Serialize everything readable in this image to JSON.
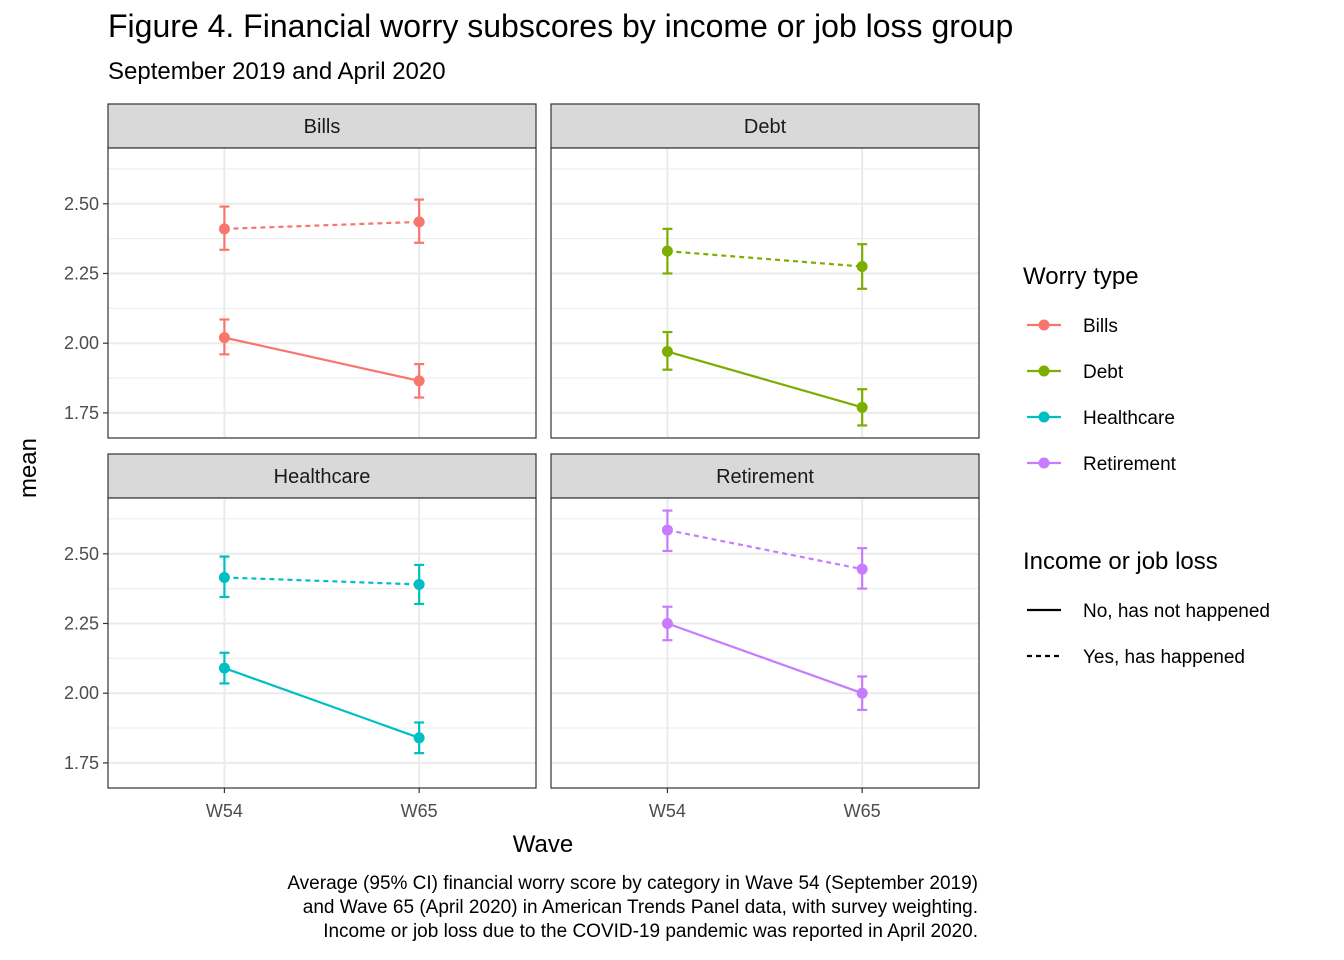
{
  "title": "Figure 4. Financial worry subscores by income or job loss group",
  "subtitle": "September 2019 and April 2020",
  "caption": [
    "Average (95% CI) financial worry score by category in Wave 54 (September 2019)",
    "and Wave 65 (April 2020) in American Trends Panel data, with survey weighting.",
    "Income or job loss due to the COVID-19 pandemic was reported in April 2020."
  ],
  "chart_data": {
    "type": "line",
    "facets": [
      "Bills",
      "Debt",
      "Healthcare",
      "Retirement"
    ],
    "x": [
      "W54",
      "W65"
    ],
    "xlabel": "Wave",
    "ylabel": "mean",
    "ylim": [
      1.66,
      2.7
    ],
    "yticks": [
      "1.75",
      "2.00",
      "2.25",
      "2.50"
    ],
    "grid": true,
    "legend_position": "right",
    "colors": {
      "Bills": "#F8766D",
      "Debt": "#7CAE00",
      "Healthcare": "#00BFC4",
      "Retirement": "#C77CFF"
    },
    "linetypes": {
      "No, has not happened": "solid",
      "Yes, has happened": "dashed"
    },
    "series": [
      {
        "facet": "Bills",
        "worry": "Bills",
        "loss": "No, has not happened",
        "values": [
          2.02,
          1.865
        ],
        "ci_low": [
          1.96,
          1.805
        ],
        "ci_high": [
          2.085,
          1.925
        ]
      },
      {
        "facet": "Bills",
        "worry": "Bills",
        "loss": "Yes, has happened",
        "values": [
          2.41,
          2.435
        ],
        "ci_low": [
          2.335,
          2.36
        ],
        "ci_high": [
          2.49,
          2.515
        ]
      },
      {
        "facet": "Debt",
        "worry": "Debt",
        "loss": "No, has not happened",
        "values": [
          1.97,
          1.77
        ],
        "ci_low": [
          1.905,
          1.705
        ],
        "ci_high": [
          2.04,
          1.835
        ]
      },
      {
        "facet": "Debt",
        "worry": "Debt",
        "loss": "Yes, has happened",
        "values": [
          2.33,
          2.275
        ],
        "ci_low": [
          2.25,
          2.195
        ],
        "ci_high": [
          2.41,
          2.355
        ]
      },
      {
        "facet": "Healthcare",
        "worry": "Healthcare",
        "loss": "No, has not happened",
        "values": [
          2.09,
          1.84
        ],
        "ci_low": [
          2.035,
          1.785
        ],
        "ci_high": [
          2.145,
          1.895
        ]
      },
      {
        "facet": "Healthcare",
        "worry": "Healthcare",
        "loss": "Yes, has happened",
        "values": [
          2.415,
          2.39
        ],
        "ci_low": [
          2.345,
          2.32
        ],
        "ci_high": [
          2.49,
          2.46
        ]
      },
      {
        "facet": "Retirement",
        "worry": "Retirement",
        "loss": "No, has not happened",
        "values": [
          2.25,
          2.0
        ],
        "ci_low": [
          2.19,
          1.94
        ],
        "ci_high": [
          2.31,
          2.06
        ]
      },
      {
        "facet": "Retirement",
        "worry": "Retirement",
        "loss": "Yes, has happened",
        "values": [
          2.585,
          2.445
        ],
        "ci_low": [
          2.51,
          2.375
        ],
        "ci_high": [
          2.655,
          2.52
        ]
      }
    ],
    "legends": [
      {
        "title": "Worry type",
        "items": [
          "Bills",
          "Debt",
          "Healthcare",
          "Retirement"
        ]
      },
      {
        "title": "Income or job loss",
        "items": [
          "No, has not happened",
          "Yes, has happened"
        ]
      }
    ]
  }
}
